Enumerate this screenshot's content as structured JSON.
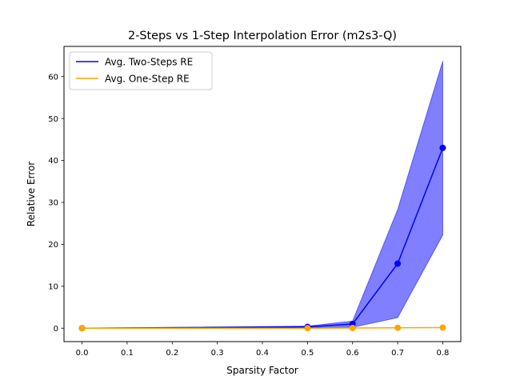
{
  "chart_data": {
    "type": "line",
    "title": "2-Steps vs 1-Step Interpolation Error (m2s3-Q)",
    "xlabel": "Sparsity Factor",
    "ylabel": "Relative Error",
    "xlim": [
      -0.04,
      0.84
    ],
    "ylim": [
      -3.2,
      67.2
    ],
    "xticks": [
      0.0,
      0.1,
      0.2,
      0.3,
      0.4,
      0.5,
      0.6,
      0.7,
      0.8
    ],
    "xtick_labels": [
      "0.0",
      "0.1",
      "0.2",
      "0.3",
      "0.4",
      "0.5",
      "0.6",
      "0.7",
      "0.8"
    ],
    "yticks": [
      0,
      10,
      20,
      30,
      40,
      50,
      60
    ],
    "ytick_labels": [
      "0",
      "10",
      "20",
      "30",
      "40",
      "50",
      "60"
    ],
    "grid": false,
    "legend_position": "top-left",
    "x": [
      0.0,
      0.5,
      0.6,
      0.7,
      0.8
    ],
    "series": [
      {
        "name": "Avg. Two-Steps RE",
        "color": "#0000ff",
        "values": [
          0.0,
          0.3,
          1.0,
          15.4,
          43.0
        ],
        "band_lower": [
          0.0,
          0.15,
          0.2,
          2.5,
          22.2
        ],
        "band_upper": [
          0.0,
          0.5,
          1.7,
          28.3,
          63.7
        ]
      },
      {
        "name": "Avg. One-Step RE",
        "color": "#ffa500",
        "values": [
          0.0,
          0.0,
          0.05,
          0.1,
          0.15
        ]
      }
    ]
  }
}
